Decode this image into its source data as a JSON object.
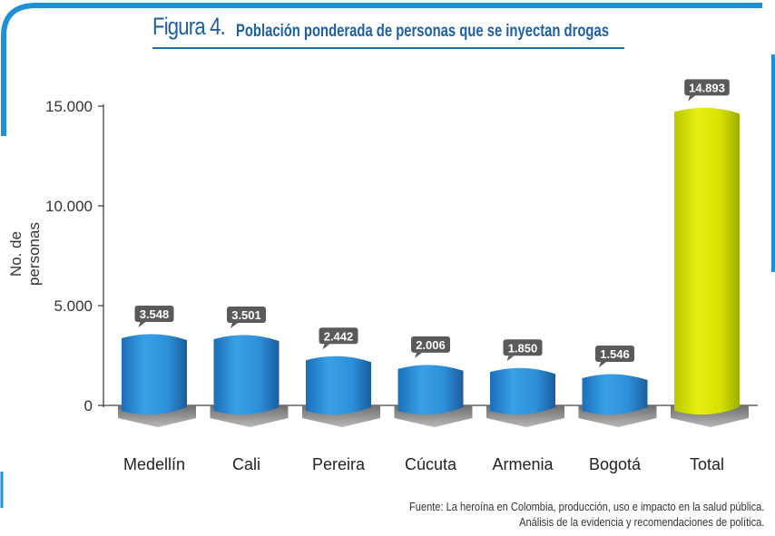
{
  "title": {
    "figure": "Figura 4.",
    "text": "Población ponderada de personas que se inyectan drogas"
  },
  "source": {
    "line1": "Fuente: La heroína en Colombia, producción, uso e impacto en la salud pública.",
    "line2": "Análisis de la evidencia y recomendaciones de política."
  },
  "colors": {
    "frame": "#1f8fd6",
    "title": "#1f5f9e",
    "bar": "#2e8fd6",
    "bar_dark": "#1b5c9e",
    "total_bar": "#d8e000",
    "total_dark": "#9ab000",
    "label_bg": "#5a5a5a"
  },
  "chart_data": {
    "type": "bar",
    "title": "Población ponderada de personas que se inyectan drogas",
    "xlabel": "",
    "ylabel": "No. de personas",
    "categories": [
      "Medellín",
      "Cali",
      "Pereira",
      "Cúcuta",
      "Armenia",
      "Bogotá",
      "Total"
    ],
    "values": [
      3548,
      3501,
      2442,
      2006,
      1850,
      1546,
      14893
    ],
    "value_labels": [
      "3.548",
      "3.501",
      "2.442",
      "2.006",
      "1.850",
      "1.546",
      "14.893"
    ],
    "yticks": [
      0,
      5000,
      10000,
      15000
    ],
    "ytick_labels": [
      "0",
      "5.000",
      "10.000",
      "15.000"
    ],
    "ylim": [
      0,
      15000
    ],
    "grid": false,
    "legend": "none"
  }
}
